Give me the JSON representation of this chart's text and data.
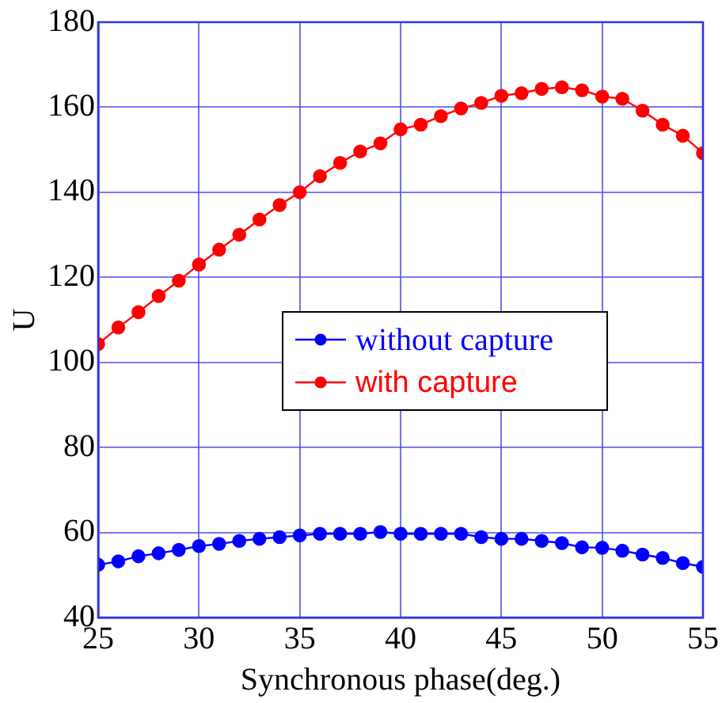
{
  "chart_data": {
    "type": "line",
    "xlabel": "Synchronous phase(deg.)",
    "ylabel": "U",
    "x": [
      25,
      26,
      27,
      28,
      29,
      30,
      31,
      32,
      33,
      34,
      35,
      36,
      37,
      38,
      39,
      40,
      41,
      42,
      43,
      44,
      45,
      46,
      47,
      48,
      49,
      50,
      51,
      52,
      53,
      54,
      55
    ],
    "series": [
      {
        "name": "without capture",
        "color": "#0000ff",
        "values": [
          52.4,
          53.2,
          54.4,
          55.1,
          55.9,
          56.8,
          57.3,
          58,
          58.5,
          58.9,
          59.3,
          59.7,
          59.7,
          59.7,
          60.1,
          59.7,
          59.7,
          59.7,
          59.7,
          58.9,
          58.5,
          58.5,
          58,
          57.5,
          56.5,
          56.4,
          55.7,
          54.8,
          54,
          52.8,
          51.9
        ]
      },
      {
        "name": "with capture",
        "color": "#ff0000",
        "values": [
          104.3,
          108.2,
          111.8,
          115.6,
          119.2,
          123,
          126.5,
          130,
          133.6,
          137,
          140,
          143.8,
          146.9,
          149.6,
          151.5,
          154.8,
          155.9,
          157.9,
          159.7,
          161,
          162.7,
          163.3,
          164.3,
          164.7,
          164,
          162.5,
          162,
          159.2,
          155.9,
          153.3,
          149.2
        ]
      }
    ],
    "xlim": [
      25,
      55
    ],
    "xticks": [
      25,
      30,
      35,
      40,
      45,
      50,
      55
    ],
    "ylim": [
      40,
      180
    ],
    "yticks": [
      40,
      60,
      80,
      100,
      120,
      140,
      160,
      180
    ],
    "grid": true,
    "legend": "center",
    "marker": "circle",
    "line_style": "solid"
  }
}
